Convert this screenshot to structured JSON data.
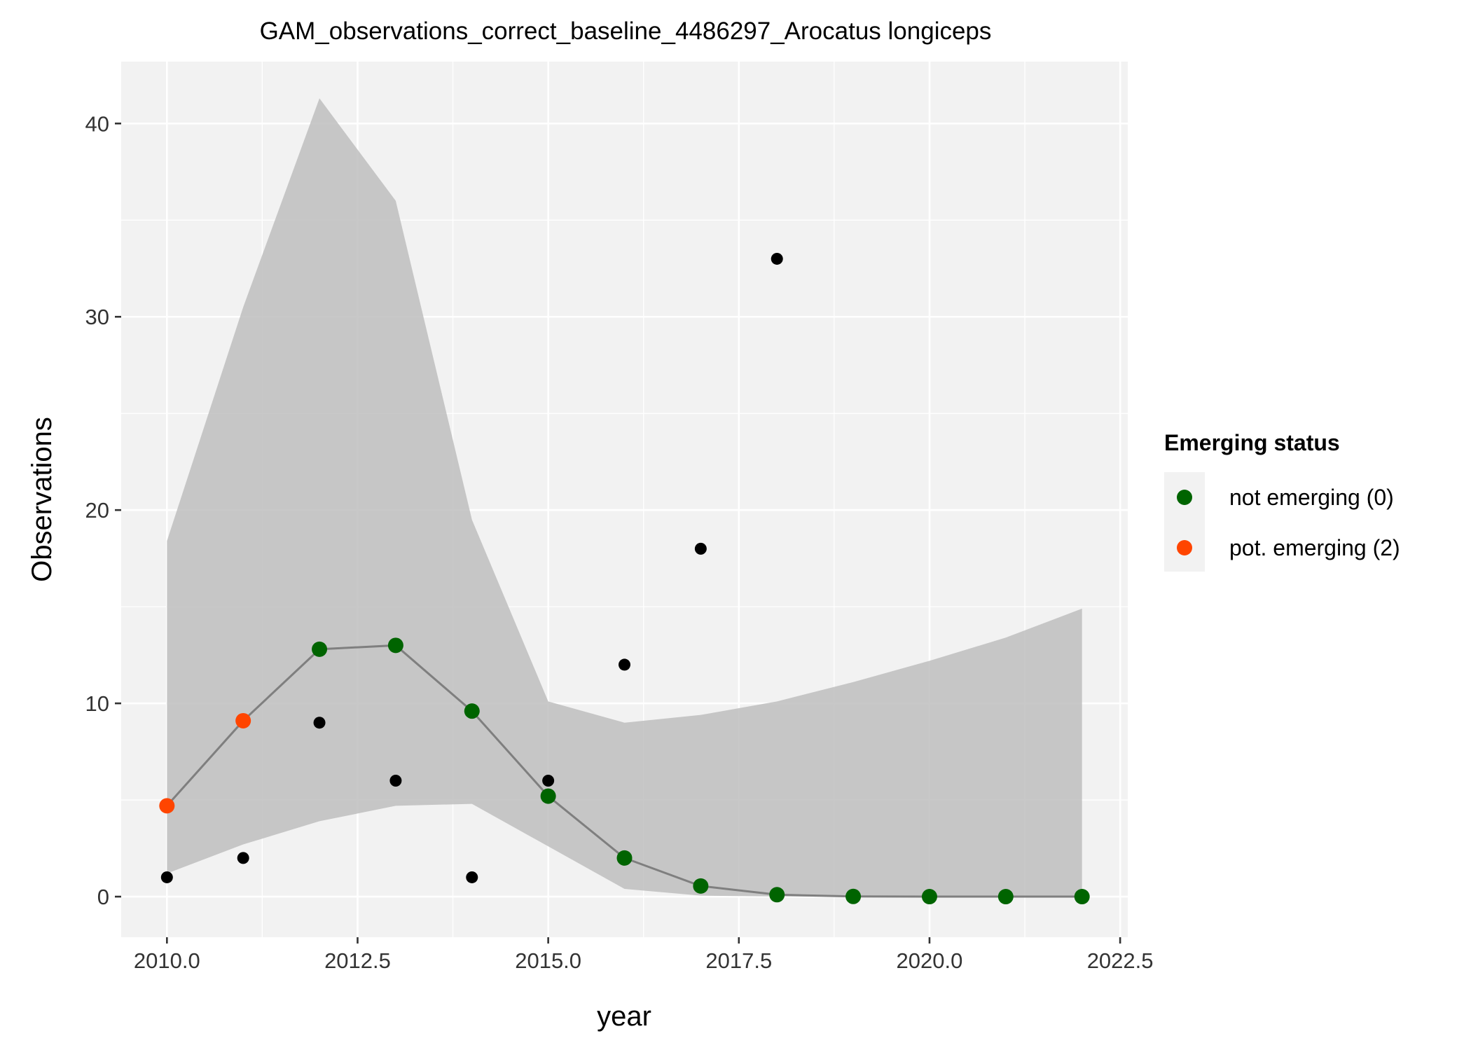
{
  "chart_data": {
    "type": "scatter",
    "title": "GAM_observations_correct_baseline_4486297_Arocatus longiceps",
    "xlabel": "year",
    "ylabel": "Observations",
    "xlim": [
      2009.4,
      2022.6
    ],
    "ylim": [
      -2.1,
      43.2
    ],
    "x_ticks": [
      2010.0,
      2012.5,
      2015.0,
      2017.5,
      2020.0,
      2022.5
    ],
    "x_tick_labels": [
      "2010.0",
      "2012.5",
      "2015.0",
      "2017.5",
      "2020.0",
      "2022.5"
    ],
    "y_ticks": [
      0,
      10,
      20,
      30,
      40
    ],
    "y_tick_labels": [
      "0",
      "10",
      "20",
      "30",
      "40"
    ],
    "grid": true,
    "legend": {
      "title": "Emerging status",
      "position": "right",
      "entries": [
        {
          "label": "not emerging (0)",
          "color": "#006400"
        },
        {
          "label": "pot. emerging (2)",
          "color": "#FF4500"
        }
      ]
    },
    "confidence_band": {
      "x": [
        2010,
        2011,
        2012,
        2013,
        2014,
        2015,
        2016,
        2017,
        2018,
        2019,
        2020,
        2021,
        2022
      ],
      "lower": [
        1.2,
        2.7,
        3.9,
        4.7,
        4.8,
        2.6,
        0.4,
        0.05,
        0.01,
        0,
        0,
        0,
        0
      ],
      "upper": [
        18.4,
        30.5,
        41.3,
        36.0,
        19.5,
        10.1,
        9.0,
        9.4,
        10.1,
        11.1,
        12.2,
        13.4,
        14.9
      ],
      "color": "#bebebe"
    },
    "fitted_line": {
      "x": [
        2010,
        2011,
        2012,
        2013,
        2014,
        2015,
        2016,
        2017,
        2018,
        2019,
        2020,
        2021,
        2022
      ],
      "y": [
        4.7,
        9.1,
        12.8,
        13.0,
        9.6,
        5.2,
        2.0,
        0.55,
        0.1,
        0.01,
        0,
        0,
        0
      ],
      "status": [
        2,
        2,
        0,
        0,
        0,
        0,
        0,
        0,
        0,
        0,
        0,
        0,
        0
      ],
      "line_color": "#7f7f7f"
    },
    "observations": {
      "x": [
        2010,
        2011,
        2012,
        2013,
        2014,
        2015,
        2016,
        2017,
        2018
      ],
      "y": [
        1,
        2,
        9,
        6,
        1,
        6,
        12,
        18,
        33
      ],
      "color": "#000000"
    },
    "colors": {
      "panel_bg": "#f2f2f2",
      "grid": "#ffffff",
      "not_emerging": "#006400",
      "pot_emerging": "#FF4500"
    }
  }
}
